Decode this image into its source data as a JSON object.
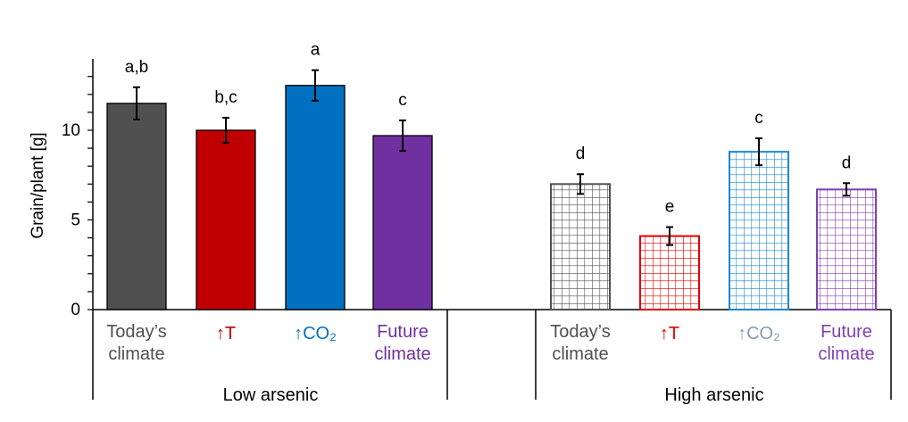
{
  "chart_data": {
    "type": "bar",
    "ylabel": "Grain/plant [g]",
    "ylim": [
      0,
      13.8
    ],
    "yticks": [
      0,
      5,
      10
    ],
    "grid": false,
    "groups": [
      {
        "name": "Low arsenic",
        "bars": [
          {
            "label_lines": [
              "Today’s",
              "climate"
            ],
            "value": 11.5,
            "err": 0.9,
            "sig": "a,b",
            "color": "#505050",
            "pattern": "solid"
          },
          {
            "label_lines": [
              "↑T"
            ],
            "value": 10.0,
            "err": 0.7,
            "sig": "b,c",
            "color": "#c00000",
            "pattern": "solid"
          },
          {
            "label_lines": [
              "↑CO₂"
            ],
            "value": 12.5,
            "err": 0.85,
            "sig": "a",
            "color": "#0070c0",
            "pattern": "solid"
          },
          {
            "label_lines": [
              "Future",
              "climate"
            ],
            "value": 9.7,
            "err": 0.85,
            "sig": "c",
            "color": "#7030a0",
            "pattern": "solid"
          }
        ]
      },
      {
        "name": "High arsenic",
        "bars": [
          {
            "label_lines": [
              "Today’s",
              "climate"
            ],
            "value": 7.0,
            "err": 0.55,
            "sig": "d",
            "color": "#505050",
            "pattern": "grid"
          },
          {
            "label_lines": [
              "↑T"
            ],
            "value": 4.1,
            "err": 0.5,
            "sig": "e",
            "color": "#e00000",
            "pattern": "grid"
          },
          {
            "label_lines": [
              "↑CO₂"
            ],
            "value": 8.8,
            "err": 0.75,
            "sig": "c",
            "color": "#1a86d6",
            "pattern": "grid"
          },
          {
            "label_lines": [
              "Future",
              "climate"
            ],
            "value": 6.7,
            "err": 0.35,
            "sig": "d",
            "color": "#8040b0",
            "pattern": "grid"
          }
        ]
      }
    ],
    "label_colors": [
      "#505050",
      "#c00000",
      "#0070c0",
      "#7030a0",
      "#505050",
      "#e00000",
      "#8a9ab0",
      "#8040b0"
    ]
  }
}
